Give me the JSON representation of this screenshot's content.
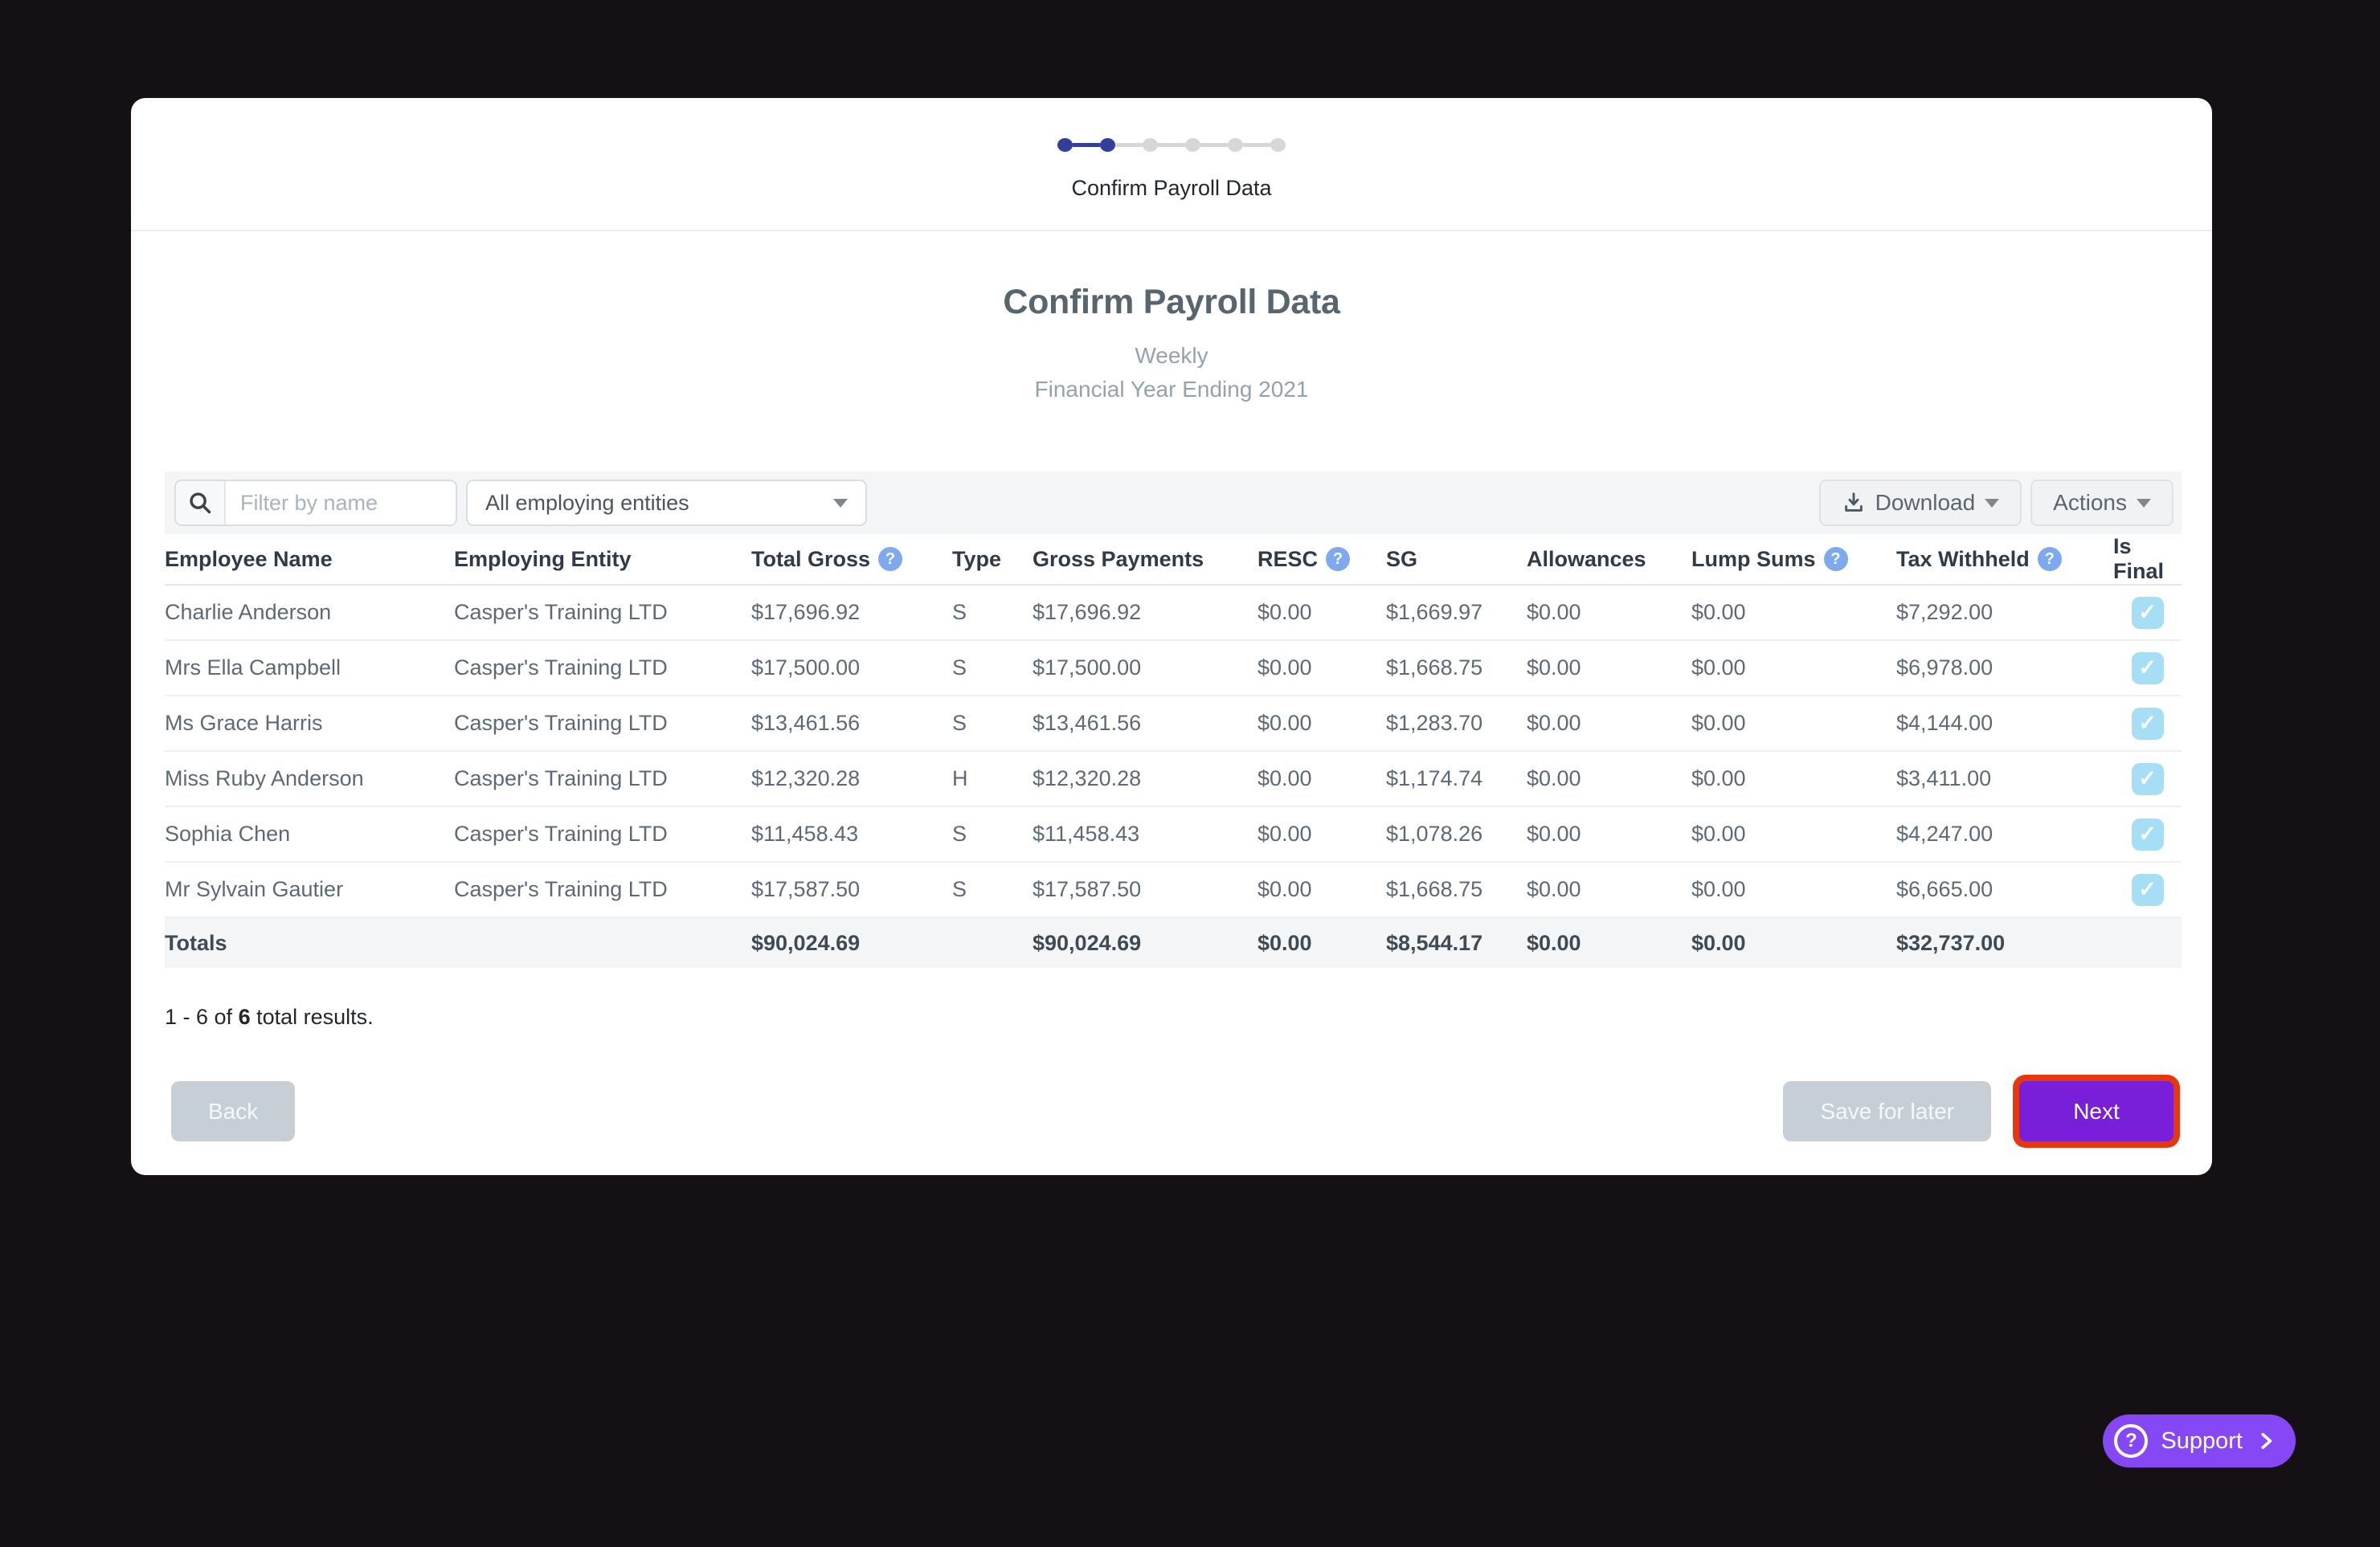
{
  "colors": {
    "background": "#151014",
    "stepper_active": "#323e99",
    "accent_purple": "#7a1fd9",
    "support_purple": "#8648f5",
    "next_highlight_outline": "#e6380e",
    "help_icon_blue": "#7ea9ef",
    "checkbox_blue": "#a6dff5"
  },
  "stepper": {
    "steps_total": 6,
    "steps_completed": 2,
    "label": "Confirm Payroll Data"
  },
  "header": {
    "title": "Confirm Payroll Data",
    "subtitle_line1": "Weekly",
    "subtitle_line2": "Financial Year Ending 2021"
  },
  "filter_bar": {
    "search_placeholder": "Filter by name",
    "search_icon": "magnifier",
    "entity_filter_value": "All employing entities",
    "download_label": "Download",
    "actions_label": "Actions"
  },
  "table": {
    "columns": [
      {
        "key": "employee_name",
        "label": "Employee Name",
        "help": false
      },
      {
        "key": "employing_entity",
        "label": "Employing Entity",
        "help": false
      },
      {
        "key": "total_gross",
        "label": "Total Gross",
        "help": true
      },
      {
        "key": "type",
        "label": "Type",
        "help": false
      },
      {
        "key": "gross_payments",
        "label": "Gross Payments",
        "help": false
      },
      {
        "key": "resc",
        "label": "RESC",
        "help": true
      },
      {
        "key": "sg",
        "label": "SG",
        "help": false
      },
      {
        "key": "allowances",
        "label": "Allowances",
        "help": false
      },
      {
        "key": "lump_sums",
        "label": "Lump Sums",
        "help": true
      },
      {
        "key": "tax_withheld",
        "label": "Tax Withheld",
        "help": true
      },
      {
        "key": "is_final",
        "label": "Is Final",
        "help": false
      }
    ],
    "rows": [
      {
        "employee_name": "Charlie Anderson",
        "employing_entity": "Casper's Training LTD",
        "total_gross": "$17,696.92",
        "type": "S",
        "gross_payments": "$17,696.92",
        "resc": "$0.00",
        "sg": "$1,669.97",
        "allowances": "$0.00",
        "lump_sums": "$0.00",
        "tax_withheld": "$7,292.00",
        "is_final": true
      },
      {
        "employee_name": "Mrs Ella Campbell",
        "employing_entity": "Casper's Training LTD",
        "total_gross": "$17,500.00",
        "type": "S",
        "gross_payments": "$17,500.00",
        "resc": "$0.00",
        "sg": "$1,668.75",
        "allowances": "$0.00",
        "lump_sums": "$0.00",
        "tax_withheld": "$6,978.00",
        "is_final": true
      },
      {
        "employee_name": "Ms Grace Harris",
        "employing_entity": "Casper's Training LTD",
        "total_gross": "$13,461.56",
        "type": "S",
        "gross_payments": "$13,461.56",
        "resc": "$0.00",
        "sg": "$1,283.70",
        "allowances": "$0.00",
        "lump_sums": "$0.00",
        "tax_withheld": "$4,144.00",
        "is_final": true
      },
      {
        "employee_name": "Miss Ruby Anderson",
        "employing_entity": "Casper's Training LTD",
        "total_gross": "$12,320.28",
        "type": "H",
        "gross_payments": "$12,320.28",
        "resc": "$0.00",
        "sg": "$1,174.74",
        "allowances": "$0.00",
        "lump_sums": "$0.00",
        "tax_withheld": "$3,411.00",
        "is_final": true
      },
      {
        "employee_name": "Sophia Chen",
        "employing_entity": "Casper's Training LTD",
        "total_gross": "$11,458.43",
        "type": "S",
        "gross_payments": "$11,458.43",
        "resc": "$0.00",
        "sg": "$1,078.26",
        "allowances": "$0.00",
        "lump_sums": "$0.00",
        "tax_withheld": "$4,247.00",
        "is_final": true
      },
      {
        "employee_name": "Mr Sylvain Gautier",
        "employing_entity": "Casper's Training LTD",
        "total_gross": "$17,587.50",
        "type": "S",
        "gross_payments": "$17,587.50",
        "resc": "$0.00",
        "sg": "$1,668.75",
        "allowances": "$0.00",
        "lump_sums": "$0.00",
        "tax_withheld": "$6,665.00",
        "is_final": true
      }
    ],
    "totals": {
      "employee_name": "Totals",
      "employing_entity": "",
      "total_gross": "$90,024.69",
      "type": "",
      "gross_payments": "$90,024.69",
      "resc": "$0.00",
      "sg": "$8,544.17",
      "allowances": "$0.00",
      "lump_sums": "$0.00",
      "tax_withheld": "$32,737.00",
      "is_final": null
    }
  },
  "pagination": {
    "prefix": "1 - 6 of",
    "bold_count": "6",
    "suffix": "total results."
  },
  "footer": {
    "back_label": "Back",
    "save_label": "Save for later",
    "next_label": "Next"
  },
  "support": {
    "label": "Support"
  }
}
